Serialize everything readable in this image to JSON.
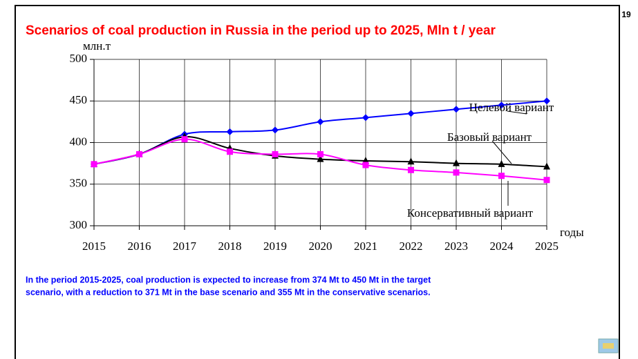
{
  "page_number": "19",
  "chart_data": {
    "type": "line",
    "title": "Scenarios of coal production in Russia in the period up to 2025, Mln t / year",
    "y_label": "млн.т",
    "x_label": "годы",
    "x": [
      2015,
      2016,
      2017,
      2018,
      2019,
      2020,
      2021,
      2022,
      2023,
      2024,
      2025
    ],
    "xlim": [
      2015,
      2025
    ],
    "xticks": [
      2015,
      2016,
      2017,
      2018,
      2019,
      2020,
      2021,
      2022,
      2023,
      2024,
      2025
    ],
    "ylim": [
      300,
      500
    ],
    "yticks": [
      300,
      350,
      400,
      450,
      500
    ],
    "grid": true,
    "series": [
      {
        "name": "Целевой вариант",
        "color": "#0000ff",
        "marker": "diamond",
        "values": [
          374,
          386,
          410,
          413,
          415,
          425,
          430,
          435,
          440,
          445,
          450
        ]
      },
      {
        "name": "Базовый вариант",
        "color": "#000000",
        "marker": "triangle",
        "values": [
          374,
          386,
          407,
          393,
          384,
          380,
          378,
          377,
          375,
          374,
          371
        ]
      },
      {
        "name": "Консервативный  вариант",
        "color": "#ff00ff",
        "marker": "square",
        "values": [
          374,
          386,
          404,
          389,
          386,
          386,
          373,
          367,
          364,
          360,
          355
        ]
      }
    ]
  },
  "note_lines": [
    "In the period 2015-2025, coal production is expected to increase from 374 Mt  to 450 Mt in the target",
    "scenario, with a reduction to 371 Mt in the base scenario and 355 Mt in the conservative scenarios."
  ]
}
